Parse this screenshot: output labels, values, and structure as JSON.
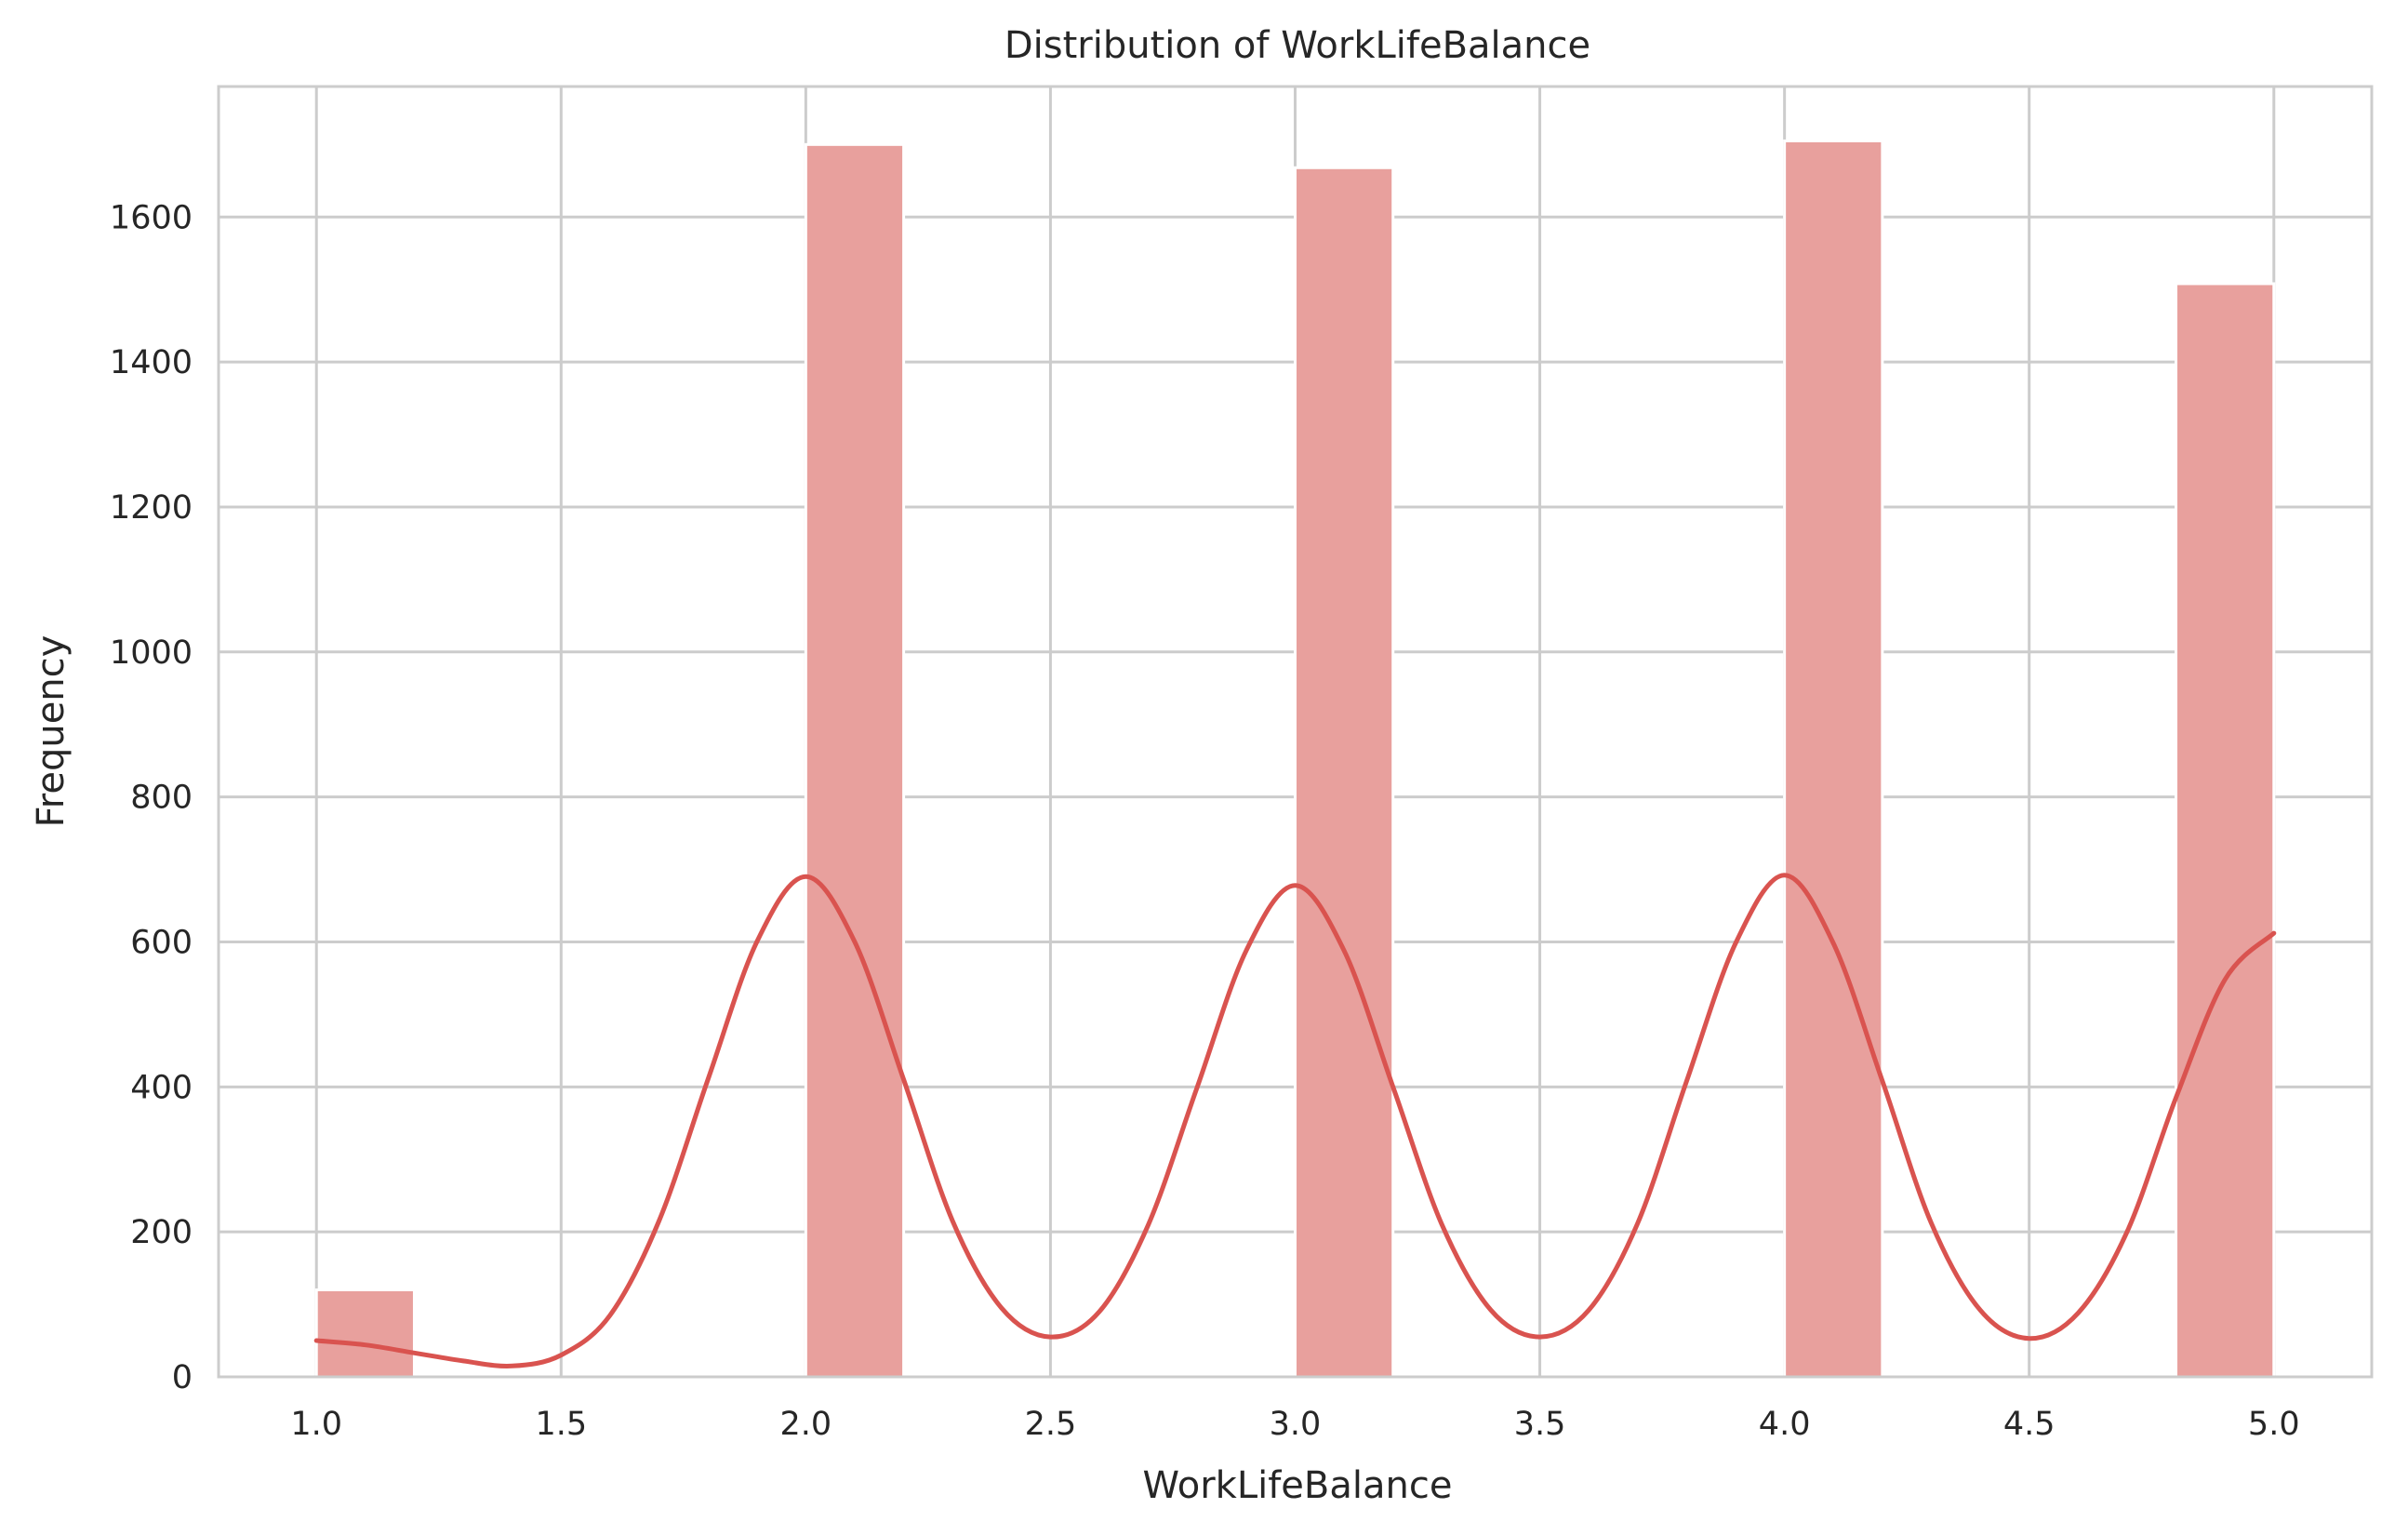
{
  "chart_data": {
    "type": "bar",
    "title": "Distribution of WorkLifeBalance",
    "xlabel": "WorkLifeBalance",
    "ylabel": "Frequency",
    "xlim": [
      0.8,
      5.2
    ],
    "ylim": [
      0,
      1780
    ],
    "xticks": [
      "1.0",
      "1.5",
      "2.0",
      "2.5",
      "3.0",
      "3.5",
      "4.0",
      "4.5",
      "5.0"
    ],
    "yticks": [
      "0",
      "200",
      "400",
      "600",
      "800",
      "1000",
      "1200",
      "1400",
      "1600"
    ],
    "grid": true,
    "bars": [
      {
        "x0": 1.0,
        "x1": 1.2,
        "value": 120
      },
      {
        "x0": 2.0,
        "x1": 2.2,
        "value": 1700
      },
      {
        "x0": 3.0,
        "x1": 3.2,
        "value": 1668
      },
      {
        "x0": 4.0,
        "x1": 4.2,
        "value": 1705
      },
      {
        "x0": 4.8,
        "x1": 5.0,
        "value": 1508
      }
    ],
    "kde": {
      "x": [
        1.0,
        1.1,
        1.2,
        1.3,
        1.4,
        1.5,
        1.6,
        1.7,
        1.8,
        1.9,
        2.0,
        2.1,
        2.2,
        2.3,
        2.4,
        2.5,
        2.6,
        2.7,
        2.8,
        2.9,
        3.0,
        3.1,
        3.2,
        3.3,
        3.4,
        3.5,
        3.6,
        3.7,
        3.8,
        3.9,
        4.0,
        4.1,
        4.2,
        4.3,
        4.4,
        4.5,
        4.6,
        4.7,
        4.8,
        4.9,
        5.0
      ],
      "y": [
        50,
        44,
        33,
        22,
        15,
        30,
        85,
        215,
        410,
        600,
        690,
        600,
        410,
        215,
        95,
        55,
        90,
        210,
        400,
        588,
        678,
        588,
        400,
        210,
        92,
        55,
        92,
        212,
        408,
        598,
        692,
        598,
        408,
        212,
        92,
        53,
        88,
        200,
        385,
        548,
        612
      ]
    },
    "colors": {
      "bar": "#e8a09d",
      "kde": "#d9534f",
      "grid": "#cccccc",
      "text": "#262626"
    }
  }
}
